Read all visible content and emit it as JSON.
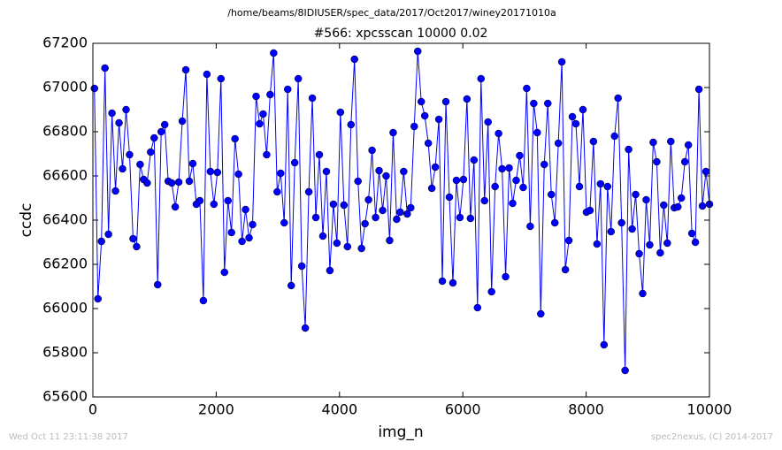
{
  "chart_data": {
    "type": "line",
    "suptitle": "/home/beams/8IDIUSER/spec_data/2017/Oct2017/winey20171010a",
    "title": "#566: xpcsscan 10000 0.02",
    "xlabel": "img_n",
    "ylabel": "ccdc",
    "timestamp": "Wed Oct 11 23:11:38 2017",
    "credit": "spec2nexus, (C) 2014-2017",
    "xlim": [
      0,
      10000
    ],
    "xticks": [
      0,
      2000,
      4000,
      6000,
      8000,
      10000
    ],
    "ylim": [
      65600,
      67200
    ],
    "yticks": [
      65600,
      65800,
      66000,
      66200,
      66400,
      66600,
      66800,
      67000,
      67200
    ],
    "grid": false,
    "x": [
      25,
      82,
      139,
      196,
      253,
      310,
      367,
      424,
      481,
      538,
      595,
      652,
      709,
      766,
      823,
      880,
      937,
      994,
      1051,
      1108,
      1165,
      1222,
      1279,
      1336,
      1393,
      1450,
      1507,
      1564,
      1621,
      1678,
      1735,
      1792,
      1849,
      1906,
      1963,
      2020,
      2077,
      2134,
      2191,
      2248,
      2305,
      2362,
      2419,
      2476,
      2533,
      2590,
      2647,
      2704,
      2761,
      2818,
      2875,
      2932,
      2989,
      3046,
      3103,
      3160,
      3217,
      3274,
      3331,
      3388,
      3445,
      3502,
      3559,
      3616,
      3673,
      3730,
      3787,
      3844,
      3901,
      3958,
      4015,
      4072,
      4129,
      4186,
      4243,
      4300,
      4357,
      4414,
      4471,
      4528,
      4585,
      4642,
      4699,
      4756,
      4813,
      4870,
      4927,
      4984,
      5041,
      5098,
      5155,
      5212,
      5269,
      5326,
      5383,
      5440,
      5497,
      5554,
      5611,
      5668,
      5725,
      5782,
      5839,
      5896,
      5953,
      6010,
      6067,
      6124,
      6181,
      6238,
      6295,
      6352,
      6409,
      6466,
      6523,
      6580,
      6637,
      6694,
      6751,
      6808,
      6865,
      6922,
      6979,
      7036,
      7093,
      7150,
      7207,
      7264,
      7321,
      7378,
      7435,
      7492,
      7549,
      7606,
      7663,
      7720,
      7777,
      7834,
      7891,
      7948,
      8005,
      8062,
      8119,
      8176,
      8233,
      8290,
      8347,
      8404,
      8461,
      8518,
      8575,
      8632,
      8689,
      8746,
      8803,
      8860,
      8917,
      8974,
      9031,
      9088,
      9145,
      9202,
      9259,
      9316,
      9373,
      9430,
      9487,
      9544,
      9601,
      9658,
      9715,
      9772,
      9829,
      9886,
      9943,
      10000
    ],
    "series": [
      {
        "color": "#0000ff",
        "values": [
          66996,
          66044,
          66304,
          67088,
          66336,
          66884,
          66532,
          66840,
          66632,
          66900,
          66696,
          66316,
          66280,
          66652,
          66584,
          66568,
          66708,
          66772,
          66108,
          66800,
          66832,
          66576,
          66568,
          66460,
          66572,
          66848,
          67080,
          66576,
          66656,
          66472,
          66488,
          66036,
          67060,
          66620,
          66472,
          66616,
          67040,
          66164,
          66488,
          66344,
          66768,
          66608,
          66304,
          66448,
          66320,
          66380,
          66960,
          66836,
          66880,
          66696,
          66968,
          67156,
          66528,
          66612,
          66388,
          66992,
          66104,
          66660,
          67040,
          66192,
          65912,
          66528,
          66952,
          66412,
          66696,
          66328,
          66620,
          66172,
          66472,
          66296,
          66888,
          66468,
          66280,
          66832,
          67128,
          66576,
          66272,
          66384,
          66492,
          66716,
          66412,
          66624,
          66444,
          66600,
          66308,
          66796,
          66404,
          66436,
          66620,
          66428,
          66456,
          66824,
          67164,
          66936,
          66872,
          66748,
          66544,
          66640,
          66856,
          66124,
          66936,
          66504,
          66116,
          66580,
          66412,
          66584,
          66948,
          66408,
          66672,
          66004,
          67040,
          66488,
          66844,
          66076,
          66552,
          66792,
          66632,
          66144,
          66636,
          66476,
          66580,
          66692,
          66548,
          66996,
          66372,
          66928,
          66796,
          65976,
          66652,
          66928,
          66516,
          66388,
          66748,
          67116,
          66176,
          66308,
          66868,
          66836,
          66552,
          66900,
          66436,
          66444,
          66756,
          66292,
          66564,
          65836,
          66552,
          66348,
          66780,
          66952,
          66388,
          65720,
          66720,
          66360,
          66516,
          66248,
          66068,
          66492,
          66288,
          66752,
          66664,
          66252,
          66468,
          66296,
          66756,
          66456,
          66460,
          66500,
          66664,
          66740,
          66340,
          66300,
          66992,
          66464,
          66620,
          66472
        ]
      }
    ]
  }
}
